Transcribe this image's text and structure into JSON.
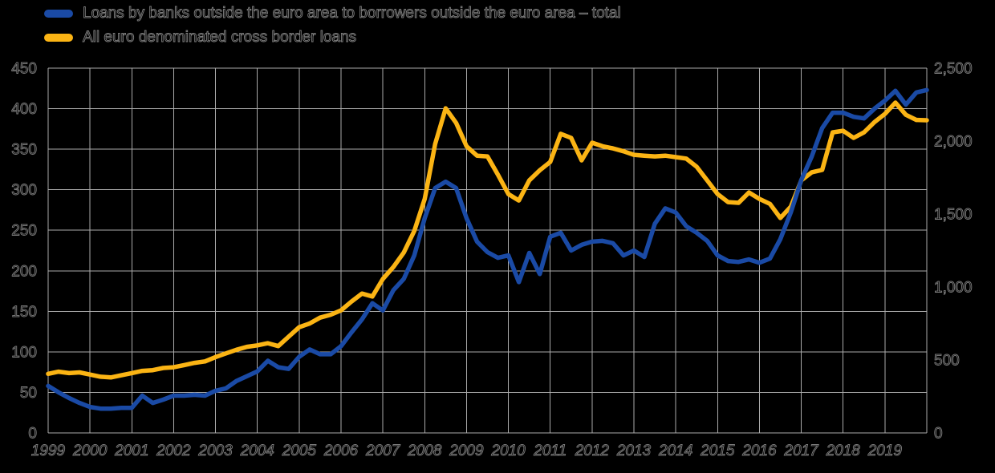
{
  "legend": {
    "items": [
      {
        "label": "Loans by banks outside the euro area to borrowers outside the euro area – total",
        "color": "#1a4aa5"
      },
      {
        "label": "All euro denominated cross border loans",
        "color": "#fbb414"
      }
    ]
  },
  "colors": {
    "background": "#000000",
    "grid": "#aaaaaa",
    "text_outline": "#7e7e7e",
    "series_blue": "#1a4aa5",
    "series_yellow": "#fbb414"
  },
  "chart_data": {
    "type": "line",
    "title": "",
    "xlabel": "",
    "ylabel_left": "",
    "ylabel_right": "",
    "grid": true,
    "legend_position": "top-left",
    "x_start": 1999,
    "x_step": 0.25,
    "x_end": 2020,
    "x_tick_labels": [
      "1999",
      "2000",
      "2001",
      "2002",
      "2003",
      "2004",
      "2005",
      "2006",
      "2007",
      "2008",
      "2009",
      "2010",
      "2011",
      "2012",
      "2013",
      "2014",
      "2015",
      "2016",
      "2017",
      "2018",
      "2019"
    ],
    "left_axis": {
      "range": [
        0,
        450
      ],
      "tick_labels": [
        "0",
        "50",
        "100",
        "150",
        "200",
        "250",
        "300",
        "350",
        "400",
        "450"
      ]
    },
    "right_axis": {
      "range": [
        0,
        2500
      ],
      "tick_labels": [
        "0",
        "500",
        "1,000",
        "1,500",
        "2,000",
        "2,500"
      ]
    },
    "series": [
      {
        "name": "Loans by banks outside the euro area to borrowers outside the euro area – total",
        "axis": "left",
        "color": "#1a4aa5",
        "values": [
          58,
          50,
          43,
          37,
          32,
          30,
          30,
          31,
          31,
          46,
          37,
          41,
          46,
          46,
          47,
          46,
          52,
          55,
          64,
          70,
          76,
          89,
          81,
          79,
          94,
          103,
          97,
          97,
          107,
          124,
          140,
          160,
          151,
          176,
          190,
          219,
          265,
          302,
          310,
          302,
          265,
          236,
          223,
          216,
          219,
          186,
          222,
          196,
          242,
          247,
          225,
          232,
          236,
          237,
          234,
          219,
          225,
          217,
          258,
          277,
          272,
          255,
          247,
          237,
          219,
          212,
          211,
          214,
          210,
          215,
          239,
          272,
          312,
          341,
          376,
          395,
          395,
          390,
          388,
          400,
          410,
          422,
          405,
          420,
          423
        ]
      },
      {
        "name": "All euro denominated cross border loans",
        "axis": "right",
        "color": "#fbb414",
        "values": [
          405,
          420,
          410,
          415,
          400,
          385,
          380,
          395,
          410,
          425,
          430,
          445,
          450,
          465,
          480,
          490,
          520,
          545,
          570,
          590,
          600,
          615,
          595,
          660,
          725,
          750,
          790,
          810,
          840,
          900,
          955,
          935,
          1055,
          1137,
          1236,
          1384,
          1604,
          1980,
          2225,
          2125,
          1965,
          1900,
          1895,
          1770,
          1637,
          1593,
          1731,
          1800,
          1857,
          2050,
          2022,
          1868,
          1989,
          1965,
          1950,
          1930,
          1906,
          1900,
          1895,
          1900,
          1890,
          1880,
          1824,
          1731,
          1637,
          1582,
          1577,
          1648,
          1604,
          1570,
          1473,
          1550,
          1731,
          1786,
          1802,
          2060,
          2071,
          2022,
          2060,
          2130,
          2187,
          2264,
          2180,
          2145,
          2143
        ]
      }
    ]
  }
}
